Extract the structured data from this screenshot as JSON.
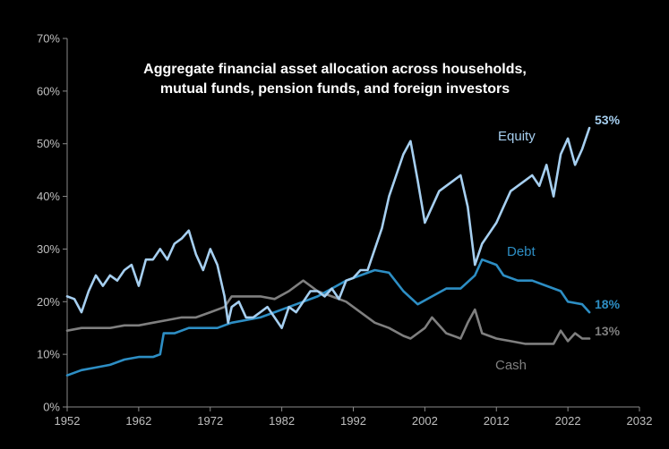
{
  "chart_data": {
    "type": "line",
    "title_lines": [
      "Aggregate financial asset allocation across households,",
      "mutual funds, pension funds, and foreign investors"
    ],
    "xlim": [
      1952,
      2032
    ],
    "ylim": [
      0,
      70
    ],
    "x_ticks": [
      "1952",
      "1962",
      "1972",
      "1982",
      "1992",
      "2002",
      "2012",
      "2022",
      "2032"
    ],
    "y_ticks": [
      "0%",
      "10%",
      "20%",
      "30%",
      "40%",
      "50%",
      "60%",
      "70%"
    ],
    "grid": false,
    "series": [
      {
        "name": "Equity",
        "color": "#a6cff0",
        "end_label": "53%",
        "points": [
          [
            1952,
            21
          ],
          [
            1953,
            20.5
          ],
          [
            1954,
            18
          ],
          [
            1955,
            22
          ],
          [
            1956,
            25
          ],
          [
            1957,
            23
          ],
          [
            1958,
            25
          ],
          [
            1959,
            24
          ],
          [
            1960,
            26
          ],
          [
            1961,
            27
          ],
          [
            1962,
            23
          ],
          [
            1963,
            28
          ],
          [
            1964,
            28
          ],
          [
            1965,
            30
          ],
          [
            1966,
            28
          ],
          [
            1967,
            31
          ],
          [
            1968,
            32
          ],
          [
            1969,
            33.5
          ],
          [
            1970,
            29
          ],
          [
            1971,
            26
          ],
          [
            1972,
            30
          ],
          [
            1973,
            27
          ],
          [
            1974,
            21
          ],
          [
            1974.5,
            16
          ],
          [
            1975,
            19
          ],
          [
            1976,
            20
          ],
          [
            1977,
            17
          ],
          [
            1978,
            17
          ],
          [
            1979,
            18
          ],
          [
            1980,
            19
          ],
          [
            1981,
            17
          ],
          [
            1982,
            15
          ],
          [
            1983,
            19
          ],
          [
            1984,
            18
          ],
          [
            1985,
            20
          ],
          [
            1986,
            22
          ],
          [
            1987,
            22
          ],
          [
            1988,
            21
          ],
          [
            1989,
            22.5
          ],
          [
            1990,
            20.5
          ],
          [
            1991,
            24
          ],
          [
            1992,
            24.5
          ],
          [
            1993,
            26
          ],
          [
            1994,
            26
          ],
          [
            1995,
            30
          ],
          [
            1996,
            34
          ],
          [
            1997,
            40
          ],
          [
            1998,
            44
          ],
          [
            1999,
            48
          ],
          [
            2000,
            50.5
          ],
          [
            2001,
            43
          ],
          [
            2002,
            35
          ],
          [
            2003,
            38
          ],
          [
            2004,
            41
          ],
          [
            2005,
            42
          ],
          [
            2006,
            43
          ],
          [
            2007,
            44
          ],
          [
            2008,
            38
          ],
          [
            2009,
            27
          ],
          [
            2010,
            31
          ],
          [
            2011,
            33
          ],
          [
            2012,
            35
          ],
          [
            2013,
            38
          ],
          [
            2014,
            41
          ],
          [
            2015,
            42
          ],
          [
            2016,
            43
          ],
          [
            2017,
            44
          ],
          [
            2018,
            42
          ],
          [
            2019,
            46
          ],
          [
            2020,
            40
          ],
          [
            2021,
            48
          ],
          [
            2022,
            51
          ],
          [
            2023,
            46
          ],
          [
            2024,
            49
          ],
          [
            2025,
            53
          ]
        ]
      },
      {
        "name": "Debt",
        "color": "#2d8ec4",
        "end_label": "18%",
        "points": [
          [
            1952,
            6
          ],
          [
            1954,
            7
          ],
          [
            1956,
            7.5
          ],
          [
            1958,
            8
          ],
          [
            1960,
            9
          ],
          [
            1962,
            9.5
          ],
          [
            1964,
            9.5
          ],
          [
            1965,
            10
          ],
          [
            1965.5,
            14
          ],
          [
            1967,
            14
          ],
          [
            1969,
            15
          ],
          [
            1971,
            15
          ],
          [
            1973,
            15
          ],
          [
            1975,
            16
          ],
          [
            1977,
            16.5
          ],
          [
            1979,
            17
          ],
          [
            1981,
            18
          ],
          [
            1983,
            19
          ],
          [
            1985,
            20
          ],
          [
            1987,
            21
          ],
          [
            1989,
            22.5
          ],
          [
            1991,
            24
          ],
          [
            1993,
            25
          ],
          [
            1995,
            26
          ],
          [
            1997,
            25.5
          ],
          [
            1999,
            22
          ],
          [
            2001,
            19.5
          ],
          [
            2003,
            21
          ],
          [
            2005,
            22.5
          ],
          [
            2007,
            22.5
          ],
          [
            2009,
            25
          ],
          [
            2010,
            28
          ],
          [
            2011,
            27.5
          ],
          [
            2012,
            27
          ],
          [
            2013,
            25
          ],
          [
            2015,
            24
          ],
          [
            2017,
            24
          ],
          [
            2019,
            23
          ],
          [
            2021,
            22
          ],
          [
            2022,
            20
          ],
          [
            2024,
            19.5
          ],
          [
            2025,
            18
          ]
        ]
      },
      {
        "name": "Cash",
        "color": "#7f7f7f",
        "end_label": "13%",
        "points": [
          [
            1952,
            14.5
          ],
          [
            1954,
            15
          ],
          [
            1956,
            15
          ],
          [
            1958,
            15
          ],
          [
            1960,
            15.5
          ],
          [
            1962,
            15.5
          ],
          [
            1964,
            16
          ],
          [
            1966,
            16.5
          ],
          [
            1968,
            17
          ],
          [
            1970,
            17
          ],
          [
            1972,
            18
          ],
          [
            1974,
            19
          ],
          [
            1975,
            21
          ],
          [
            1977,
            21
          ],
          [
            1979,
            21
          ],
          [
            1981,
            20.5
          ],
          [
            1983,
            22
          ],
          [
            1985,
            24
          ],
          [
            1987,
            22
          ],
          [
            1989,
            21
          ],
          [
            1991,
            20
          ],
          [
            1993,
            18
          ],
          [
            1995,
            16
          ],
          [
            1997,
            15
          ],
          [
            1999,
            13.5
          ],
          [
            2000,
            13
          ],
          [
            2002,
            15
          ],
          [
            2003,
            17
          ],
          [
            2005,
            14
          ],
          [
            2007,
            13
          ],
          [
            2008,
            16
          ],
          [
            2009,
            18.5
          ],
          [
            2010,
            14
          ],
          [
            2012,
            13
          ],
          [
            2014,
            12.5
          ],
          [
            2016,
            12
          ],
          [
            2018,
            12
          ],
          [
            2020,
            12
          ],
          [
            2021,
            14.5
          ],
          [
            2022,
            12.5
          ],
          [
            2023,
            14
          ],
          [
            2024,
            13
          ],
          [
            2025,
            13
          ]
        ]
      }
    ]
  }
}
